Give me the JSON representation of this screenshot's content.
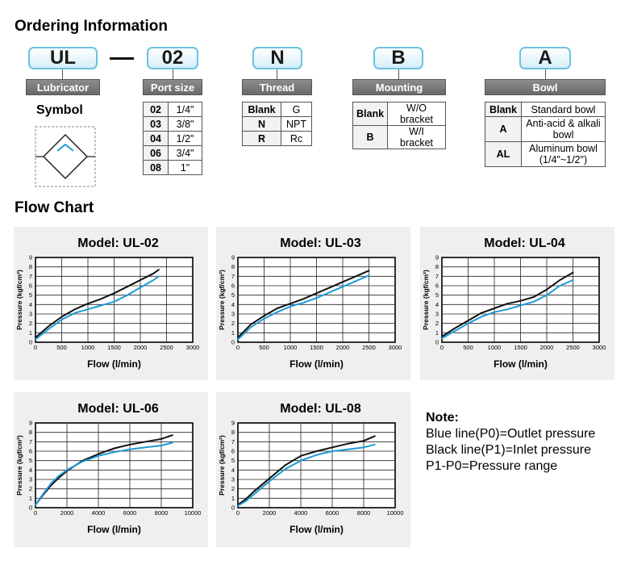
{
  "ordering": {
    "title": "Ordering Information",
    "codes": [
      {
        "code": "UL",
        "label": "Lubricator"
      },
      {
        "code": "02",
        "label": "Port size"
      },
      {
        "code": "N",
        "label": "Thread"
      },
      {
        "code": "B",
        "label": "Mounting"
      },
      {
        "code": "A",
        "label": "Bowl"
      }
    ],
    "symbol_title": "Symbol",
    "port_size": [
      {
        "k": "02",
        "v": "1/4\""
      },
      {
        "k": "03",
        "v": "3/8\""
      },
      {
        "k": "04",
        "v": "1/2\""
      },
      {
        "k": "06",
        "v": "3/4\""
      },
      {
        "k": "08",
        "v": "1\""
      }
    ],
    "thread": [
      {
        "k": "Blank",
        "v": "G"
      },
      {
        "k": "N",
        "v": "NPT"
      },
      {
        "k": "R",
        "v": "Rc"
      }
    ],
    "mounting": [
      {
        "k": "Blank",
        "v": "W/O bracket"
      },
      {
        "k": "B",
        "v": "W/I bracket"
      }
    ],
    "bowl": [
      {
        "k": "Blank",
        "v": "Standard bowl"
      },
      {
        "k": "A",
        "v": "Anti-acid & alkali bowl"
      },
      {
        "k": "AL",
        "v": "Aluminum bowl (1/4\"~1/2\")"
      }
    ]
  },
  "flow": {
    "title": "Flow Chart",
    "note": {
      "title": "Note:",
      "lines": [
        "Blue line(P0)=Outlet pressure",
        "Black line(P1)=Inlet pressure",
        "P1-P0=Pressure range"
      ]
    }
  },
  "chart_data": [
    {
      "type": "line",
      "title": "Model: UL-02",
      "xlabel": "Flow (l/min)",
      "ylabel": "Pressure (kgf/cm²)",
      "xlim": [
        0,
        3000
      ],
      "ylim": [
        0,
        9
      ],
      "xticks": [
        "0",
        "500",
        "1000",
        "1500",
        "2000",
        "2500",
        "3000"
      ],
      "yticks": [
        "0",
        "1",
        "2",
        "3",
        "4",
        "5",
        "6",
        "7",
        "8",
        "9"
      ],
      "grid": true,
      "series": [
        {
          "color": "#111111",
          "x": [
            0,
            250,
            500,
            750,
            1000,
            1250,
            1500,
            1750,
            2000,
            2250,
            2350
          ],
          "y": [
            0.5,
            1.7,
            2.7,
            3.5,
            4.1,
            4.6,
            5.2,
            5.9,
            6.6,
            7.3,
            7.7
          ]
        },
        {
          "color": "#1e9ad6",
          "x": [
            0,
            250,
            500,
            750,
            1000,
            1250,
            1500,
            1750,
            2000,
            2250,
            2350
          ],
          "y": [
            0.3,
            1.4,
            2.4,
            3.1,
            3.5,
            3.9,
            4.3,
            5.0,
            5.8,
            6.6,
            7.0
          ]
        }
      ]
    },
    {
      "type": "line",
      "title": "Model: UL-03",
      "xlabel": "Flow (l/min)",
      "ylabel": "Pressure (kgf/cm²)",
      "xlim": [
        0,
        3000
      ],
      "ylim": [
        0,
        9
      ],
      "xticks": [
        "0",
        "500",
        "1000",
        "1500",
        "2000",
        "2500",
        "3000"
      ],
      "yticks": [
        "0",
        "1",
        "2",
        "3",
        "4",
        "5",
        "6",
        "7",
        "8",
        "9"
      ],
      "grid": true,
      "series": [
        {
          "color": "#111111",
          "x": [
            0,
            250,
            500,
            750,
            1000,
            1250,
            1500,
            1750,
            2000,
            2250,
            2500
          ],
          "y": [
            0.5,
            1.9,
            2.8,
            3.6,
            4.1,
            4.6,
            5.2,
            5.8,
            6.4,
            7.0,
            7.6
          ]
        },
        {
          "color": "#1e9ad6",
          "x": [
            0,
            250,
            500,
            750,
            1000,
            1250,
            1500,
            1750,
            2000,
            2250,
            2500
          ],
          "y": [
            0.3,
            1.6,
            2.5,
            3.2,
            3.8,
            4.2,
            4.7,
            5.3,
            5.9,
            6.5,
            7.1
          ]
        }
      ]
    },
    {
      "type": "line",
      "title": "Model: UL-04",
      "xlabel": "Flow (l/min)",
      "ylabel": "Pressure (kgf/cm²)",
      "xlim": [
        0,
        3000
      ],
      "ylim": [
        0,
        9
      ],
      "xticks": [
        "0",
        "500",
        "1000",
        "1500",
        "2000",
        "2500",
        "3000"
      ],
      "yticks": [
        "0",
        "1",
        "2",
        "3",
        "4",
        "5",
        "6",
        "7",
        "8",
        "9"
      ],
      "grid": true,
      "series": [
        {
          "color": "#111111",
          "x": [
            0,
            250,
            500,
            750,
            1000,
            1250,
            1500,
            1750,
            2000,
            2250,
            2500
          ],
          "y": [
            0.6,
            1.5,
            2.3,
            3.1,
            3.6,
            4.1,
            4.4,
            4.8,
            5.6,
            6.6,
            7.4
          ]
        },
        {
          "color": "#1e9ad6",
          "x": [
            0,
            250,
            500,
            750,
            1000,
            1250,
            1500,
            1750,
            2000,
            2250,
            2500
          ],
          "y": [
            0.4,
            1.2,
            2.0,
            2.7,
            3.2,
            3.5,
            3.9,
            4.3,
            5.0,
            6.0,
            6.6
          ]
        }
      ]
    },
    {
      "type": "line",
      "title": "Model: UL-06",
      "xlabel": "Flow (l/min)",
      "ylabel": "Pressure (kgf/cm²)",
      "xlim": [
        0,
        10000
      ],
      "ylim": [
        0,
        9
      ],
      "xticks": [
        "0",
        "2000",
        "4000",
        "6000",
        "8000",
        "10000"
      ],
      "yticks": [
        "0",
        "1",
        "2",
        "3",
        "4",
        "5",
        "6",
        "7",
        "8",
        "9"
      ],
      "grid": true,
      "series": [
        {
          "color": "#111111",
          "x": [
            0,
            500,
            1000,
            1500,
            2000,
            3000,
            4000,
            5000,
            6000,
            7000,
            8000,
            8700
          ],
          "y": [
            0.3,
            1.4,
            2.4,
            3.2,
            3.9,
            5.0,
            5.7,
            6.3,
            6.7,
            7.0,
            7.3,
            7.7
          ]
        },
        {
          "color": "#1e9ad6",
          "x": [
            0,
            500,
            1000,
            1500,
            2000,
            3000,
            4000,
            5000,
            6000,
            7000,
            8000,
            8700
          ],
          "y": [
            0.3,
            1.5,
            2.6,
            3.4,
            4.0,
            4.9,
            5.5,
            5.9,
            6.2,
            6.4,
            6.6,
            6.9
          ]
        }
      ]
    },
    {
      "type": "line",
      "title": "Model: UL-08",
      "xlabel": "Flow (l/min)",
      "ylabel": "Pressure (kgf/cm²)",
      "xlim": [
        0,
        10000
      ],
      "ylim": [
        0,
        9
      ],
      "xticks": [
        "0",
        "2000",
        "4000",
        "6000",
        "8000",
        "10000"
      ],
      "yticks": [
        "0",
        "1",
        "2",
        "3",
        "4",
        "5",
        "6",
        "7",
        "8",
        "9"
      ],
      "grid": true,
      "series": [
        {
          "color": "#111111",
          "x": [
            0,
            500,
            1000,
            2000,
            3000,
            4000,
            5000,
            6000,
            7000,
            8000,
            8700
          ],
          "y": [
            0.3,
            0.9,
            1.7,
            3.1,
            4.5,
            5.5,
            6.0,
            6.4,
            6.8,
            7.1,
            7.6
          ]
        },
        {
          "color": "#1e9ad6",
          "x": [
            0,
            500,
            1000,
            2000,
            3000,
            4000,
            5000,
            6000,
            7000,
            8000,
            8700
          ],
          "y": [
            0.2,
            0.7,
            1.4,
            2.8,
            4.1,
            5.0,
            5.6,
            6.0,
            6.2,
            6.4,
            6.7
          ]
        }
      ]
    }
  ]
}
